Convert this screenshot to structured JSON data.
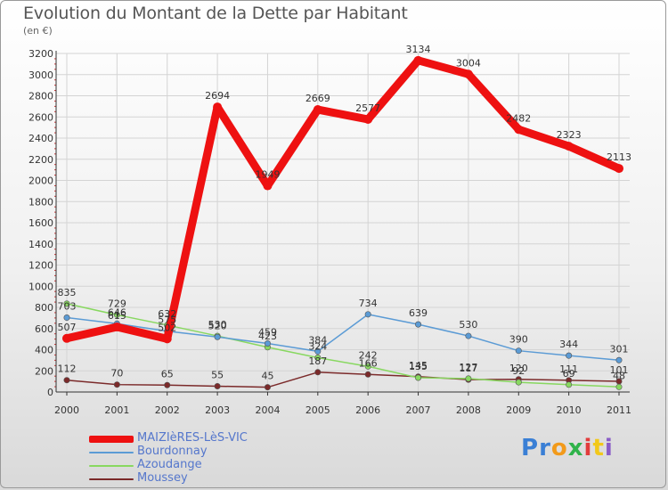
{
  "header": {
    "title": "Evolution du Montant de la Dette par Habitant",
    "subtitle": "(en €)"
  },
  "logo": {
    "text": "Proxiti"
  },
  "chart_data": {
    "type": "line",
    "title": "Evolution du Montant de la Dette par Habitant",
    "ylabel": "(en €)",
    "xlabel": "",
    "categories": [
      "2000",
      "2001",
      "2002",
      "2003",
      "2004",
      "2005",
      "2006",
      "2007",
      "2008",
      "2009",
      "2010",
      "2011"
    ],
    "yticks": [
      0,
      200,
      400,
      600,
      800,
      1000,
      1200,
      1400,
      1600,
      1800,
      2000,
      2200,
      2400,
      2600,
      2800,
      3000,
      3200
    ],
    "ylim": [
      0,
      3200
    ],
    "grid": true,
    "legend_position": "bottom-left",
    "series": [
      {
        "name": "MAIZIèRES-LèS-VIC",
        "color": "#ee1111",
        "values": [
          507,
          615,
          502,
          2694,
          1949,
          2669,
          2577,
          3134,
          3004,
          2482,
          2323,
          2113
        ],
        "labels": [
          "507",
          "615",
          "502",
          "2694",
          "1949",
          "2669",
          "2577",
          "3134",
          "3004",
          "2482",
          "2323",
          "2113"
        ]
      },
      {
        "name": "Bourdonnay",
        "color": "#5b9bd5",
        "values": [
          703,
          646,
          575,
          520,
          459,
          384,
          734,
          639,
          530,
          390,
          344,
          301
        ],
        "labels": [
          "703",
          "646",
          "575",
          "520",
          "459",
          "384",
          "734",
          "639",
          "530",
          "390",
          "344",
          "301"
        ]
      },
      {
        "name": "Azoudange",
        "color": "#88d860",
        "values": [
          835,
          729,
          632,
          530,
          423,
          324,
          242,
          135,
          127,
          92,
          69,
          48
        ],
        "labels": [
          "835",
          "729",
          "632",
          "530",
          "423",
          "324",
          "242",
          "135",
          "127",
          "92",
          "69",
          "48"
        ]
      },
      {
        "name": "Moussey",
        "color": "#7b2a2a",
        "values": [
          112,
          70,
          65,
          55,
          45,
          187,
          166,
          145,
          117,
          120,
          111,
          101
        ],
        "labels": [
          "112",
          "70",
          "65",
          "55",
          "45",
          "187",
          "166",
          "145",
          "117",
          "120",
          "111",
          "101"
        ]
      }
    ]
  }
}
